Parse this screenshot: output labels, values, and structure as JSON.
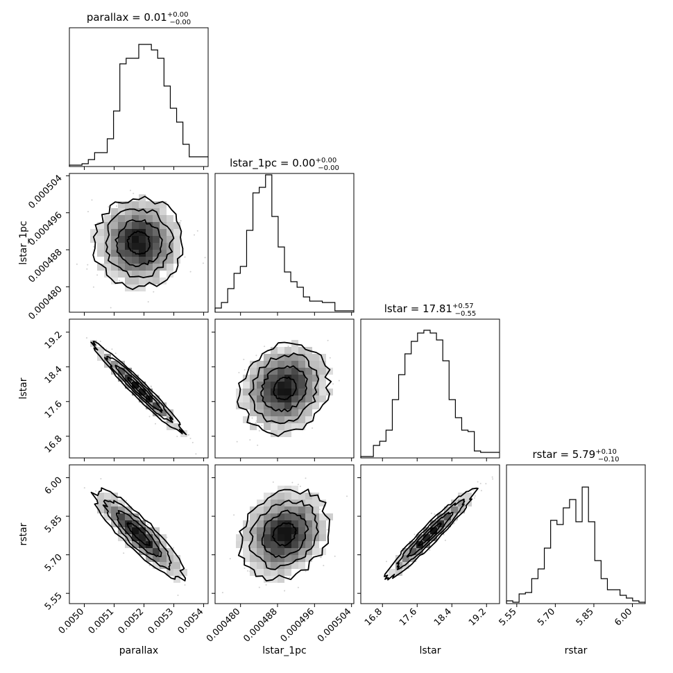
{
  "chart_data": {
    "type": "corner",
    "parameters": [
      {
        "name": "parallax",
        "xlabel": "parallax",
        "ylabel": "",
        "title_prefix": "parallax = 0.01",
        "title_sup": "+0.00",
        "title_sub": "−0.00",
        "range": [
          0.00495,
          0.005415
        ],
        "ticks": [
          0.005,
          0.0051,
          0.0052,
          0.0053,
          0.0054
        ],
        "tick_labels": [
          "0.0050",
          "0.0051",
          "0.0052",
          "0.0053",
          "0.0054"
        ],
        "hist_edges": [
          0.00495,
          0.005412
        ],
        "hist_values": [
          0.01,
          0.01,
          0.02,
          0.05,
          0.1,
          0.1,
          0.2,
          0.4,
          0.74,
          0.78,
          0.78,
          0.88,
          0.88,
          0.84,
          0.78,
          0.58,
          0.42,
          0.32,
          0.16,
          0.07,
          0.07,
          0.07
        ]
      },
      {
        "name": "lstar_1pc",
        "xlabel": "lstar_1pc",
        "ylabel": "lstar_1pc",
        "title_prefix": "lstar_1pc = 0.00",
        "title_sup": "+0.00",
        "title_sub": "−0.00",
        "range": [
          0.0004745,
          0.0005045
        ],
        "ticks": [
          0.00048,
          0.000488,
          0.000496,
          0.000504
        ],
        "tick_labels": [
          "0.000480",
          "0.000488",
          "0.000496",
          "0.000504"
        ],
        "hist_edges": [
          0.0004745,
          0.0005045
        ],
        "hist_values": [
          0.03,
          0.07,
          0.17,
          0.28,
          0.33,
          0.59,
          0.86,
          0.9,
          0.99,
          0.69,
          0.47,
          0.29,
          0.22,
          0.18,
          0.11,
          0.08,
          0.08,
          0.07,
          0.07,
          0.01,
          0.01,
          0.01
        ]
      },
      {
        "name": "lstar",
        "xlabel": "lstar",
        "ylabel": "lstar",
        "title_prefix": "lstar = 17.81",
        "title_sup": "+0.57",
        "title_sub": "−0.55",
        "range": [
          16.3,
          19.5
        ],
        "ticks": [
          16.8,
          17.6,
          18.4,
          19.2
        ],
        "tick_labels": [
          "16.8",
          "17.6",
          "18.4",
          "19.2"
        ],
        "hist_edges": [
          16.3,
          19.5
        ],
        "hist_values": [
          0.01,
          0.01,
          0.09,
          0.12,
          0.2,
          0.42,
          0.6,
          0.75,
          0.84,
          0.9,
          0.92,
          0.9,
          0.85,
          0.7,
          0.42,
          0.29,
          0.2,
          0.19,
          0.05,
          0.04,
          0.04,
          0.04
        ]
      },
      {
        "name": "rstar",
        "xlabel": "rstar",
        "ylabel": "rstar",
        "title_prefix": "rstar = 5.79",
        "title_sup": "+0.10",
        "title_sub": "−0.10",
        "range": [
          5.51,
          6.05
        ],
        "ticks": [
          5.55,
          5.7,
          5.85,
          6.0
        ],
        "tick_labels": [
          "5.55",
          "5.70",
          "5.85",
          "6.00"
        ],
        "hist_edges": [
          5.51,
          6.05
        ],
        "hist_values": [
          0.02,
          0.01,
          0.07,
          0.08,
          0.18,
          0.25,
          0.4,
          0.6,
          0.57,
          0.69,
          0.75,
          0.59,
          0.84,
          0.59,
          0.31,
          0.18,
          0.1,
          0.1,
          0.06,
          0.04,
          0.02,
          0.01
        ]
      }
    ],
    "correlations": [
      {
        "row": 1,
        "col": 0,
        "rho": 0.0
      },
      {
        "row": 2,
        "col": 0,
        "rho": -0.97
      },
      {
        "row": 2,
        "col": 1,
        "rho": 0.15
      },
      {
        "row": 3,
        "col": 0,
        "rho": -0.88
      },
      {
        "row": 3,
        "col": 1,
        "rho": 0.2
      },
      {
        "row": 3,
        "col": 2,
        "rho": 0.96
      }
    ],
    "contour_levels_sigma": [
      0.5,
      1.0,
      1.5,
      2.0
    ]
  }
}
